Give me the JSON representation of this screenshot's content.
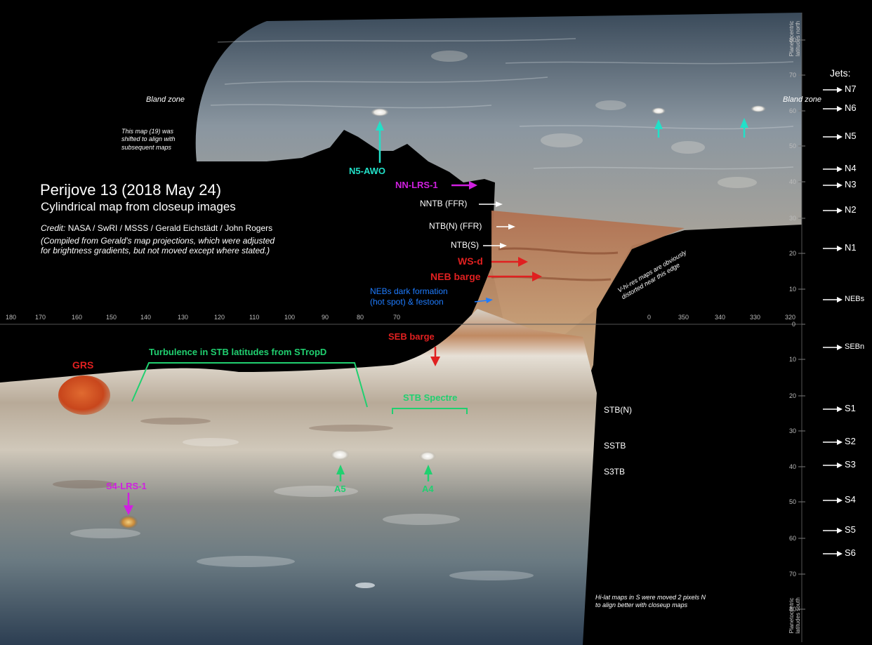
{
  "title": "Perijove 13 (2018 May 24)",
  "subtitle": "Cylindrical map from closeup images",
  "credit_prefix": "Credit:",
  "credit_text": "NASA / SwRI / MSSS / Gerald Eichstädt / John Rogers",
  "compile_note_1": "(Compiled from Gerald's map projections, which were adjusted",
  "compile_note_2": "for brightness gradients, but not moved except where stated.)",
  "shift_note": "This map (19) was shifted to align with subsequent maps",
  "bland_zone": "Bland zone",
  "vhires_note": "V-hi-res maps are obviously distorted near this edge",
  "hilat_note": "Hi-lat maps in S were moved 2 pixels N to align better with closeup maps",
  "lat_north_caption": "Planetocentric latitudes north",
  "lat_south_caption": "Planetocentric latitudes south",
  "jets_title": "Jets:",
  "jets": [
    "N7",
    "N6",
    "N5",
    "N4",
    "N3",
    "N2",
    "N1",
    "NEBs",
    "SEBn",
    "S1",
    "S2",
    "S3",
    "S4",
    "S5",
    "S6"
  ],
  "lat_ticks": [
    "80",
    "70",
    "60",
    "50",
    "40",
    "30",
    "20",
    "10",
    "0",
    "10",
    "20",
    "30",
    "40",
    "50",
    "60",
    "70",
    "80"
  ],
  "lon_ticks_left": [
    "180",
    "170",
    "160",
    "150",
    "140",
    "130",
    "120",
    "110",
    "100",
    "90",
    "80",
    "70"
  ],
  "lon_ticks_right": [
    "0",
    "350",
    "340",
    "330",
    "320"
  ],
  "labels": {
    "n5_awo": "N5-AWO",
    "nn_lrs1": "NN-LRS-1",
    "nntb": "NNTB (FFR)",
    "ntbn": "NTB(N) (FFR)",
    "ntbs": "NTB(S)",
    "wsd": "WS-d",
    "neb_barge": "NEB barge",
    "nebs_dark_1": "NEBs dark formation",
    "nebs_dark_2": "(hot spot) & festoon",
    "seb_barge": "SEB barge",
    "grs": "GRS",
    "turbulence": "Turbulence in STB latitudes from STropD",
    "stb_spectre": "STB Spectre",
    "stbn": "STB(N)",
    "sstb": "SSTB",
    "s3tb": "S3TB",
    "s4_lrs1": "S4-LRS-1",
    "a5": "A5",
    "a4": "A4"
  },
  "colors": {
    "cyan": "#22e0c8",
    "magenta": "#d020e0",
    "red": "#e02020",
    "blue": "#1e7cff",
    "green": "#20d070",
    "white": "#ffffff"
  }
}
